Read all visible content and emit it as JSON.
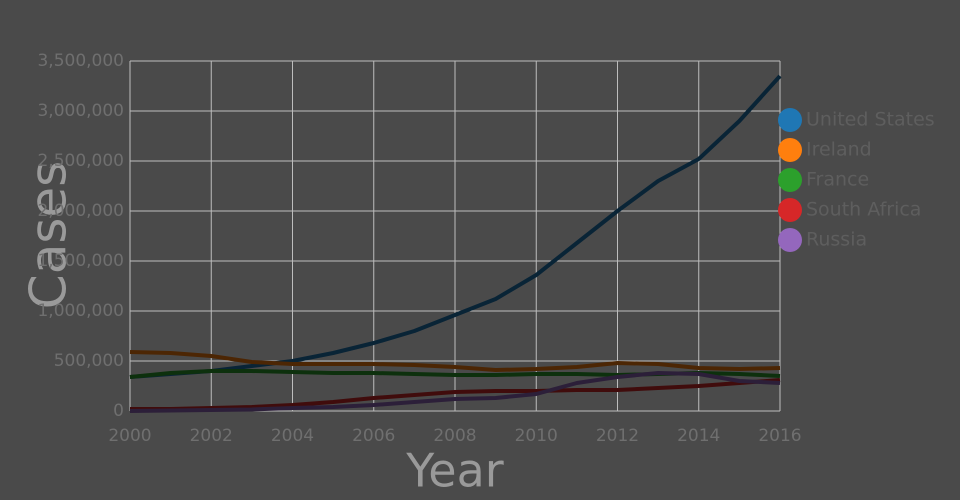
{
  "chart_data": {
    "type": "line",
    "x_label": "Year",
    "y_label": "Cases",
    "x": [
      2000,
      2001,
      2002,
      2003,
      2004,
      2005,
      2006,
      2007,
      2008,
      2009,
      2010,
      2011,
      2012,
      2013,
      2014,
      2015,
      2016
    ],
    "series": [
      {
        "name": "United States",
        "color": "#1f77b4",
        "values": [
          340000,
          370000,
          400000,
          450000,
          500000,
          580000,
          680000,
          800000,
          960000,
          1120000,
          1360000,
          1680000,
          2000000,
          2300000,
          2520000,
          2900000,
          3350000
        ]
      },
      {
        "name": "Ireland",
        "color": "#ff7f0e",
        "values": [
          590000,
          580000,
          550000,
          490000,
          470000,
          470000,
          470000,
          460000,
          440000,
          410000,
          420000,
          440000,
          480000,
          470000,
          430000,
          420000,
          430000
        ]
      },
      {
        "name": "France",
        "color": "#2ca02c",
        "values": [
          340000,
          380000,
          400000,
          400000,
          390000,
          380000,
          380000,
          370000,
          360000,
          360000,
          370000,
          370000,
          360000,
          370000,
          380000,
          370000,
          350000
        ]
      },
      {
        "name": "South Africa",
        "color": "#d62728",
        "values": [
          20000,
          20000,
          30000,
          40000,
          60000,
          90000,
          130000,
          160000,
          190000,
          200000,
          200000,
          210000,
          210000,
          230000,
          250000,
          280000,
          310000
        ]
      },
      {
        "name": "Russia",
        "color": "#9467bd",
        "values": [
          0,
          5000,
          10000,
          15000,
          30000,
          40000,
          60000,
          90000,
          120000,
          130000,
          170000,
          280000,
          340000,
          380000,
          370000,
          300000,
          280000
        ]
      }
    ],
    "xlim": [
      2000,
      2016
    ],
    "xticks": [
      2000,
      2002,
      2004,
      2006,
      2008,
      2010,
      2012,
      2014,
      2016
    ],
    "ylim": [
      0,
      3500000
    ],
    "yticks": [
      0,
      {
        "value": 500000,
        "label": "500,000"
      },
      {
        "value": 1000000,
        "label": "1,000,000"
      },
      {
        "value": 1500000,
        "label": "1,500,000"
      },
      {
        "value": 2000000,
        "label": "2,000,000"
      },
      {
        "value": 2500000,
        "label": "2,500,000"
      },
      {
        "value": 3000000,
        "label": "3,000,000"
      },
      {
        "value": 3500000,
        "label": "3,500,000"
      }
    ],
    "grid": true
  }
}
